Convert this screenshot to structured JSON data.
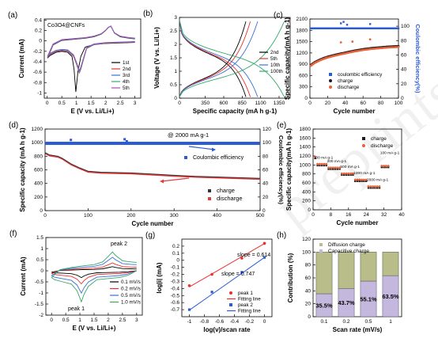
{
  "watermark": "preprints",
  "chart_data": [
    {
      "id": "a",
      "panel_label": "(a)",
      "type": "line",
      "annotation": "Co3O4@CNFs",
      "xlabel": "E (V vs. Li/Li+)",
      "ylabel": "Current (mA)",
      "xlim": [
        -0.1,
        3.2
      ],
      "ylim": [
        -1.1,
        0.42
      ],
      "xticks": [
        0.0,
        0.5,
        1.0,
        1.5,
        2.0,
        2.5,
        3.0
      ],
      "yticks": [
        -1.0,
        -0.8,
        -0.6,
        -0.4,
        -0.2,
        0.0,
        0.2,
        0.4
      ],
      "legend_position": "bottom-right",
      "series": [
        {
          "name": "1st",
          "color": "#000000"
        },
        {
          "name": "2nd",
          "color": "#e8312f"
        },
        {
          "name": "3rd",
          "color": "#3a6fd8"
        },
        {
          "name": "4th",
          "color": "#33a96a"
        },
        {
          "name": "5th",
          "color": "#a64cc4"
        }
      ],
      "curves": [
        {
          "sweep": "cathodic",
          "x": [
            3.0,
            2.5,
            2.0,
            1.6,
            1.3,
            1.15,
            1.05,
            0.98,
            0.92,
            0.85,
            0.7,
            0.5,
            0.3,
            0.1,
            0.01
          ],
          "y": [
            -0.03,
            -0.04,
            -0.05,
            -0.07,
            -0.12,
            -0.3,
            -0.6,
            -0.98,
            -0.55,
            -0.3,
            -0.22,
            -0.2,
            -0.22,
            -0.28,
            -0.33
          ]
        },
        {
          "sweep": "cathodic",
          "x": [
            3.0,
            2.5,
            2.0,
            1.6,
            1.35,
            1.25,
            1.15,
            1.1,
            1.0,
            0.9,
            0.7,
            0.5,
            0.3,
            0.1,
            0.01
          ],
          "y": [
            -0.03,
            -0.04,
            -0.05,
            -0.08,
            -0.15,
            -0.35,
            -0.55,
            -0.62,
            -0.45,
            -0.3,
            -0.2,
            -0.19,
            -0.21,
            -0.27,
            -0.32
          ]
        },
        {
          "sweep": "anodic",
          "x": [
            0.01,
            0.2,
            0.5,
            0.9,
            1.3,
            1.6,
            1.85,
            2.0,
            2.1,
            2.18,
            2.3,
            2.5,
            2.8,
            3.0
          ],
          "y": [
            -0.33,
            -0.08,
            0.01,
            0.03,
            0.05,
            0.08,
            0.13,
            0.2,
            0.26,
            0.28,
            0.15,
            0.08,
            0.05,
            0.04
          ]
        }
      ]
    },
    {
      "id": "b",
      "panel_label": "(b)",
      "type": "line",
      "xlabel": "Specific capacity (mA h g-1)",
      "ylabel": "Voltage (V vs. Li/Li+)",
      "xlim": [
        0,
        1500
      ],
      "ylim": [
        0,
        3
      ],
      "xticks": [
        0,
        350,
        600,
        850,
        1100,
        1350
      ],
      "xticklabels": [
        "0",
        "350",
        "600",
        "850",
        "1100",
        "1350"
      ],
      "yticks": [
        0.0,
        0.5,
        1.0,
        1.5,
        2.0,
        2.5,
        3.0
      ],
      "legend_position": "right",
      "series": [
        {
          "name": "2nd",
          "color": "#000000",
          "capacity": 900
        },
        {
          "name": "5th",
          "color": "#e8312f",
          "capacity": 960
        },
        {
          "name": "10th",
          "color": "#3a6fd8",
          "capacity": 1060
        },
        {
          "name": "100th",
          "color": "#33a96a",
          "capacity": 1420
        }
      ]
    },
    {
      "id": "c",
      "panel_label": "(c)",
      "type": "scatter",
      "xlabel": "Cycle number",
      "ylabel": "Specific capacity(mA h g-1)",
      "y2label": "Coulombic efficiency(%)",
      "xlim": [
        0,
        100
      ],
      "ylim": [
        0,
        2100
      ],
      "y2lim": [
        0,
        110
      ],
      "xticks": [
        0,
        20,
        40,
        60,
        80,
        100
      ],
      "yticks": [
        0,
        300,
        600,
        900,
        1200,
        1500,
        1800,
        2100
      ],
      "y2ticks": [
        0,
        20,
        40,
        60,
        80,
        100
      ],
      "legend_position": "bottom-center",
      "series": [
        {
          "name": "coulombic efficiency",
          "color": "#2c5bd6",
          "marker": "square"
        },
        {
          "name": "charge",
          "color": "#1e1e1e",
          "marker": "circle"
        },
        {
          "name": "discharge",
          "color": "#e8623a",
          "marker": "circle"
        }
      ],
      "capacity_curve": {
        "x": [
          1,
          5,
          10,
          15,
          20,
          30,
          40,
          50,
          60,
          70,
          80,
          90,
          100
        ],
        "y": [
          870,
          940,
          1000,
          1050,
          1090,
          1150,
          1200,
          1250,
          1290,
          1320,
          1340,
          1360,
          1370
        ]
      },
      "outliers_ce": {
        "x": [
          35,
          38,
          42,
          68
        ],
        "y": [
          104,
          106,
          102,
          103
        ]
      },
      "outliers_capacity": {
        "x": [
          35,
          48,
          68
        ],
        "y": [
          1480,
          1500,
          1560
        ]
      }
    },
    {
      "id": "d",
      "panel_label": "(d)",
      "type": "scatter",
      "annotation": "@ 2000 mA g-1",
      "xlabel": "Cycle number",
      "ylabel": "Specific capacity (mA h g-1)",
      "y2label": "Coulombic efficiency(%)",
      "xlim": [
        0,
        500
      ],
      "ylim": [
        0,
        1200
      ],
      "y2lim": [
        0,
        120
      ],
      "xticks": [
        0,
        100,
        200,
        300,
        400,
        500
      ],
      "yticks": [
        0,
        200,
        400,
        600,
        800,
        1000,
        1200
      ],
      "y2ticks": [
        0,
        20,
        40,
        60,
        80,
        100,
        120
      ],
      "legend_position": "bottom-right",
      "series": [
        {
          "name": "Coulombic efficiency",
          "color": "#2c5bd6",
          "marker": "square"
        },
        {
          "name": "charge",
          "color": "#333333",
          "marker": "square"
        },
        {
          "name": "discharge",
          "color": "#e83a3a",
          "marker": "square"
        }
      ],
      "capacity_curve": {
        "x": [
          1,
          10,
          20,
          30,
          40,
          50,
          60,
          80,
          100,
          130,
          160,
          200,
          230,
          260,
          300,
          350,
          400,
          450,
          500
        ],
        "y": [
          840,
          810,
          800,
          790,
          760,
          720,
          680,
          620,
          570,
          555,
          550,
          545,
          535,
          525,
          510,
          495,
          485,
          475,
          465
        ]
      },
      "ce_level": 99,
      "outliers_ce": {
        "x": [
          60,
          185,
          190
        ],
        "y": [
          104,
          105,
          102
        ]
      }
    },
    {
      "id": "e",
      "panel_label": "(e)",
      "type": "scatter",
      "xlabel": "Cycle number",
      "ylabel": "Specific capacity(mA h g-1)",
      "xlim": [
        0,
        40
      ],
      "ylim": [
        0,
        1800
      ],
      "xticks": [
        0,
        8,
        16,
        24,
        32,
        40
      ],
      "yticks": [
        0,
        200,
        400,
        600,
        800,
        1000,
        1200,
        1400,
        1600,
        1800
      ],
      "legend_position": "top-right",
      "series": [
        {
          "name": "charge",
          "color": "#1e1e1e",
          "marker": "square"
        },
        {
          "name": "discharge",
          "color": "#e8623a",
          "marker": "circle"
        }
      ],
      "rate_steps": [
        {
          "label": "100 mA g-1",
          "start": 1,
          "end": 6,
          "capacity": 1000
        },
        {
          "label": "200 mA g-1",
          "start": 7,
          "end": 12,
          "capacity": 920
        },
        {
          "label": "500 mA g-1",
          "start": 13,
          "end": 18,
          "capacity": 790
        },
        {
          "label": "1000 mA g-1",
          "start": 19,
          "end": 24,
          "capacity": 650
        },
        {
          "label": "2000 mA g-1",
          "start": 25,
          "end": 30,
          "capacity": 500
        },
        {
          "label": "100 mA g-1",
          "start": 31,
          "end": 34,
          "capacity": 960
        }
      ]
    },
    {
      "id": "f",
      "panel_label": "(f)",
      "type": "line",
      "xlabel": "E (V vs. Li/Li+)",
      "ylabel": "Current (mA)",
      "xlim": [
        -0.2,
        3.2
      ],
      "ylim": [
        -2.0,
        1.5
      ],
      "xticks": [
        0.0,
        0.5,
        1.0,
        1.5,
        2.0,
        2.5,
        3.0
      ],
      "yticks": [
        -2.0,
        -1.5,
        -1.0,
        -0.5,
        0.0,
        0.5,
        1.0,
        1.5
      ],
      "legend_position": "bottom-right",
      "annotations": [
        "peak 1",
        "peak 2"
      ],
      "series": [
        {
          "name": "0.1 mV/s",
          "color": "#000000",
          "scale": 0.22
        },
        {
          "name": "0.2 mV/s",
          "color": "#e8312f",
          "scale": 0.42
        },
        {
          "name": "0.5 mV/s",
          "color": "#3a6fd8",
          "scale": 0.72
        },
        {
          "name": "1.0 mV/s",
          "color": "#33a96a",
          "scale": 1.0
        }
      ],
      "base_curves": [
        {
          "sweep": "anodic",
          "x": [
            0.0,
            0.3,
            0.7,
            1.1,
            1.5,
            1.8,
            2.0,
            2.15,
            2.25,
            2.5,
            2.8,
            3.0
          ],
          "y": [
            -0.3,
            0.05,
            0.15,
            0.22,
            0.28,
            0.4,
            0.65,
            0.85,
            0.7,
            0.45,
            0.4,
            0.38
          ]
        },
        {
          "sweep": "cathodic",
          "x": [
            3.0,
            2.7,
            2.4,
            2.0,
            1.6,
            1.3,
            1.15,
            1.05,
            0.9,
            0.7,
            0.4,
            0.1,
            0.0
          ],
          "y": [
            0.0,
            -0.2,
            -0.3,
            -0.35,
            -0.4,
            -0.7,
            -1.05,
            -1.4,
            -0.9,
            -0.6,
            -0.5,
            -0.4,
            -0.3
          ]
        }
      ]
    },
    {
      "id": "g",
      "panel_label": "(g)",
      "type": "scatter",
      "xlabel": "log(v)/scan rate",
      "ylabel": "log|i| (mA)",
      "xlim": [
        -1.1,
        0.1
      ],
      "ylim": [
        -0.8,
        0.3
      ],
      "xticks": [
        -1.0,
        -0.8,
        -0.6,
        -0.4,
        -0.2,
        0.0
      ],
      "yticks": [
        -0.7,
        -0.6,
        -0.5,
        -0.4,
        -0.3,
        -0.2,
        -0.1,
        0.0,
        0.1,
        0.2
      ],
      "legend_position": "bottom-right",
      "series": [
        {
          "name": "peak 1",
          "color": "#e8312f",
          "marker": "circle",
          "x": [
            -1.0,
            -0.699,
            -0.301,
            0.0
          ],
          "y": [
            -0.36,
            -0.2,
            0.03,
            0.24
          ]
        },
        {
          "name": "Fitting line",
          "color": "#e8312f",
          "marker": "line",
          "slope": 0.614,
          "intercept": 0.236
        },
        {
          "name": "peak 2",
          "color": "#2c5bd6",
          "marker": "square",
          "x": [
            -1.0,
            -0.699,
            -0.301,
            0.0
          ],
          "y": [
            -0.7,
            -0.45,
            -0.17,
            0.04
          ]
        },
        {
          "name": "Fitting line",
          "color": "#2c5bd6",
          "marker": "line",
          "slope": 0.747,
          "intercept": 0.04
        }
      ],
      "annotations": [
        "slope = 0.614",
        "slope = 0.747"
      ]
    },
    {
      "id": "h",
      "panel_label": "(h)",
      "type": "bar",
      "xlabel": "Scan rate (mV/s)",
      "ylabel": "Contribution (%)",
      "ylim": [
        0,
        120
      ],
      "yticks": [
        0,
        20,
        40,
        60,
        80,
        100,
        120
      ],
      "categories": [
        "0.1",
        "0.2",
        "0.5",
        "1"
      ],
      "legend_position": "top",
      "series": [
        {
          "name": "Diffusion charge",
          "color": "#b8bd8a",
          "values": [
            64.5,
            56.3,
            44.9,
            36.5
          ]
        },
        {
          "name": "Capacitive charge",
          "color": "#c4b8de",
          "values": [
            35.5,
            43.7,
            55.1,
            63.5
          ]
        }
      ],
      "data_labels": [
        "35.5%",
        "43.7%",
        "55.1%",
        "63.5%"
      ]
    }
  ]
}
